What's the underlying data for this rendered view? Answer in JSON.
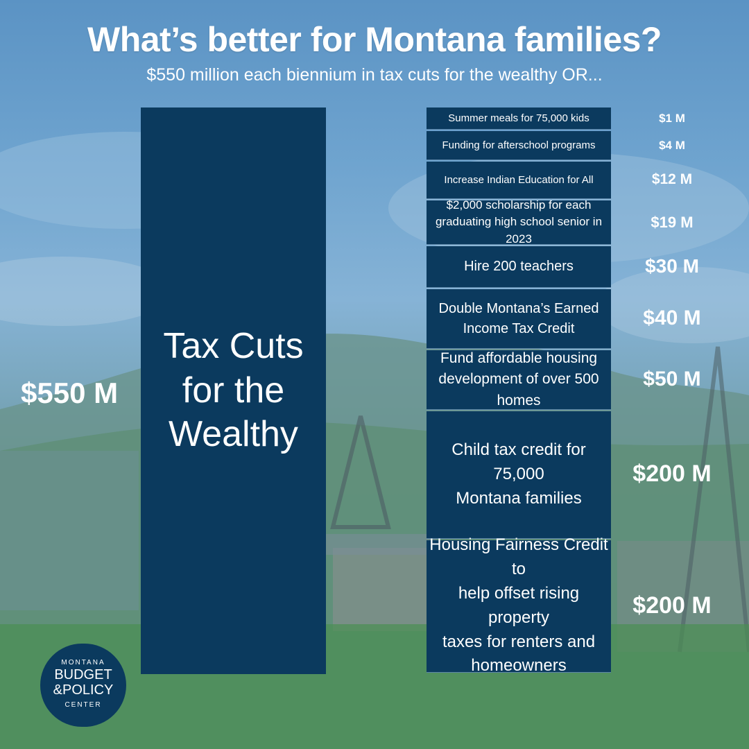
{
  "header": {
    "title": "What’s better for Montana families?",
    "subtitle": "$550 million each biennium in tax cuts for the wealthy OR..."
  },
  "chart_data": {
    "type": "bar",
    "title": "What’s better for Montana families?",
    "subtitle": "$550 million each biennium in tax cuts for the wealthy OR...",
    "unit": "$ million",
    "comparison": {
      "label": "Tax Cuts\nfor the\nWealthy",
      "value": 550,
      "value_label": "$550 M"
    },
    "categories": [
      "Summer meals for 75,000 kids",
      "Funding for afterschool programs",
      "Increase Indian Education for All",
      "$2,000 scholarship for each\ngraduating high school senior in 2023",
      "Hire 200 teachers",
      "Double Montana’s Earned\nIncome Tax Credit",
      "Fund affordable housing\ndevelopment of over 500 homes",
      "Child tax credit for 75,000\nMontana families",
      "Housing Fairness Credit to\nhelp offset rising property\ntaxes for renters and\nhomeowners"
    ],
    "values": [
      1,
      4,
      12,
      19,
      30,
      40,
      50,
      200,
      200
    ],
    "value_labels": [
      "$1 M",
      "$4 M",
      "$12 M",
      "$19 M",
      "$30 M",
      "$40 M",
      "$50 M",
      "$200 M",
      "$200 M"
    ]
  },
  "logo": {
    "top": "MONTANA",
    "middle": "BUDGET\n&POLICY",
    "bottom": "CENTER"
  },
  "colors": {
    "bar": "#0b3a5e",
    "text": "#ffffff"
  }
}
